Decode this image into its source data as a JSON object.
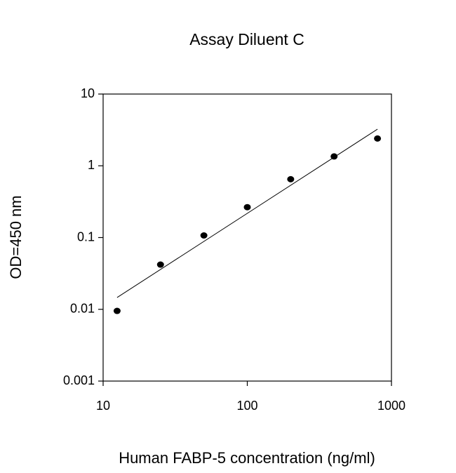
{
  "chart_data": {
    "type": "scatter",
    "title": "Assay Diluent C",
    "x_label": "Human FABP-5 concentration (ng/ml)",
    "y_label": "OD=450 nm",
    "x": [
      12.5,
      25,
      50,
      100,
      200,
      400,
      800
    ],
    "values": [
      0.0095,
      0.042,
      0.107,
      0.265,
      0.65,
      1.35,
      2.4
    ],
    "color": "#000000",
    "fit": {
      "x": [
        12.5,
        800
      ],
      "y": [
        0.0146,
        3.24
      ],
      "color": "#000000"
    },
    "x_log": true,
    "y_log": true,
    "xlim": [
      10,
      1000
    ],
    "ylim": [
      0.001,
      10
    ],
    "xticks": [
      10,
      100,
      1000
    ],
    "yticks": [
      0.001,
      0.01,
      0.1,
      1,
      10
    ]
  }
}
